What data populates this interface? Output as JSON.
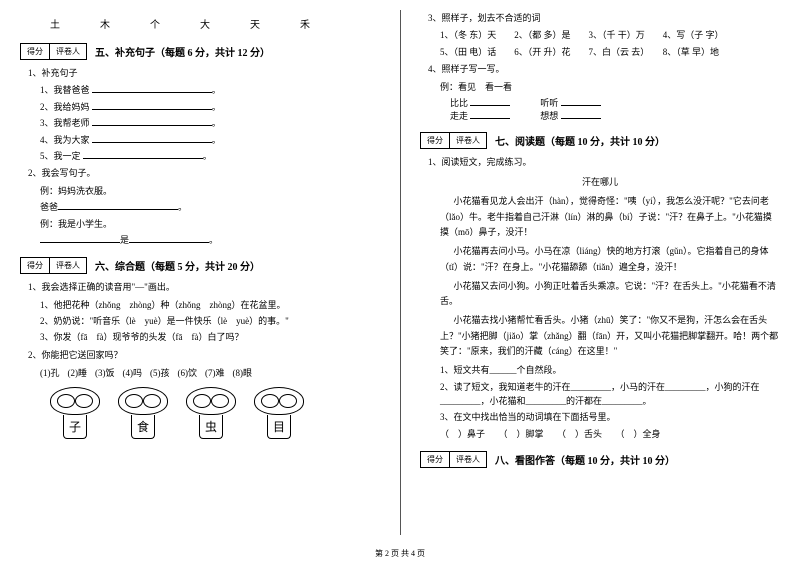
{
  "left": {
    "chars": [
      "土",
      "木",
      "个",
      "大",
      "天",
      "禾"
    ],
    "scorebox": {
      "a": "得分",
      "b": "评卷人"
    },
    "section5": {
      "title": "五、补充句子（每题 6 分，共计 12 分）"
    },
    "q1": "1、补充句子",
    "q1_items": [
      "1、我替爸爸 ",
      "2、我给妈妈 ",
      "3、我帮老师 ",
      "4、我为大家 ",
      "5、我一定 "
    ],
    "q2": "2、我会写句子。",
    "q2_ex1": "例：妈妈洗衣服。",
    "q2_line": "爸爸",
    "q2_ex2": "例：我是小学生。",
    "q2_line2": "是",
    "section6": {
      "title": "六、综合题（每题 5 分，共计 20 分）"
    },
    "s6_q1": "1、我会选择正确的读音用\"—\"画出。",
    "s6_q1_1": "1、他把花种（zhǒng　zhòng）种（zhǒng　zhòng）在花盆里。",
    "s6_q1_2": "2、奶奶说：\"听音乐（lè　yuè）是一件快乐（lè　yuè）的事。\"",
    "s6_q1_3": "3、你发（fā　fà）现爷爷的头发（fā　fà）白了吗？",
    "s6_q2": "2、你能把它送回家吗？",
    "s6_opts": [
      "(1)孔",
      "(2)睡",
      "(3)饭",
      "(4)吗",
      "(5)孩",
      "(6)饮",
      "(7)难",
      "(8)眼"
    ],
    "mushroom_chars": [
      "子",
      "食",
      "虫",
      "目"
    ]
  },
  "right": {
    "q3": "3、照样子，划去不合适的词",
    "q3_items": [
      "1、（冬 东）天　　2、（都 多）是　　3、（千 干）万　　4、写（子 字）",
      "5、（田 电）话　　6、（开 升）花　　7、白（云 去）　　8、（草 早）地"
    ],
    "q4": "4、照样子写一写。",
    "q4_ex": "例：看见　看一看",
    "q4_rows": [
      {
        "a": "比比",
        "b": "听听"
      },
      {
        "a": "走走",
        "b": "想想"
      }
    ],
    "scorebox": {
      "a": "得分",
      "b": "评卷人"
    },
    "section7": {
      "title": "七、阅读题（每题 10 分，共计 10 分）"
    },
    "s7_q1": "1、阅读短文，完成练习。",
    "s7_title": "汗在哪儿",
    "s7_p1": "小花猫看见龙人会出汗（hàn），觉得奇怪：\"咦（yí），我怎么没汗呢？\"它去问老（lǎo）牛。老牛指着自己汗淋（lín）淋的鼻（bí）子说：\"汗？在鼻子上。\"小花猫摸摸（mō）鼻子，没汗！",
    "s7_p2": "小花猫再去问小马。小马在凉（liáng）快的地方打滚（gǔn）。它指着自己的身体（tǐ）说：\"汗？在身上。\"小花猫舔舔（tiǎn）遍全身，没汗！",
    "s7_p3": "小花猫又去问小狗。小狗正吐着舌头乘凉。它说：\"汗？在舌头上。\"小花猫看不清舌。",
    "s7_p4": "小花猫去找小猪帮忙看舌头。小猪（zhū）笑了：\"你又不是狗，汗怎么会在舌头上？\"小猪把脚（jiǎo）掌（zhǎng）翻（fān）开，又叫小花猫把脚掌翻开。哈！两个都笑了：\"原来，我们的汗藏（cáng）在这里！\"",
    "s7_sub1": "1、短文共有______个自然段。",
    "s7_sub2": "2、读了短文，我知道老牛的汗在_________，小马的汗在_________，小狗的汗在_________，小花猫和_________的汗都在_________。",
    "s7_sub3": "3、在文中找出恰当的动词填在下面括号里。",
    "s7_sub3_opts": "（　）鼻子　　（　）脚掌　　（　）舌头　　（　）全身",
    "section8": {
      "title": "八、看图作答（每题 10 分，共计 10 分）"
    }
  },
  "footer": "第 2 页 共 4 页"
}
